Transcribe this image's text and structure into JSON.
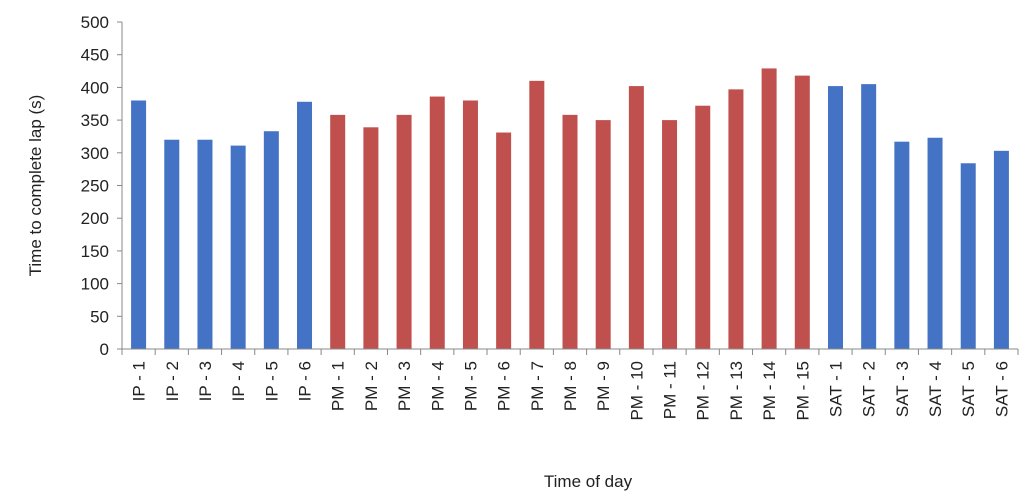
{
  "chart_data": {
    "type": "bar",
    "title": "",
    "xlabel": "Time of day",
    "ylabel": "Time to complete lap (s)",
    "ylim": [
      0,
      500
    ],
    "yticks": [
      0,
      50,
      100,
      150,
      200,
      250,
      300,
      350,
      400,
      450,
      500
    ],
    "grid": false,
    "legend": "none",
    "colors": {
      "blue": "#4472c4",
      "red": "#c0504d",
      "axis": "#888888"
    },
    "categories": [
      "IP - 1",
      "IP - 2",
      "IP - 3",
      "IP - 4",
      "IP - 5",
      "IP - 6",
      "PM - 1",
      "PM - 2",
      "PM - 3",
      "PM - 4",
      "PM - 5",
      "PM - 6",
      "PM - 7",
      "PM - 8",
      "PM - 9",
      "PM - 10",
      "PM - 11",
      "PM - 12",
      "PM - 13",
      "PM - 14",
      "PM - 15",
      "SAT - 1",
      "SAT - 2",
      "SAT - 3",
      "SAT - 4",
      "SAT - 5",
      "SAT - 6"
    ],
    "values": [
      380,
      320,
      320,
      311,
      333,
      378,
      358,
      339,
      358,
      386,
      380,
      331,
      410,
      358,
      350,
      402,
      350,
      372,
      397,
      429,
      418,
      402,
      405,
      317,
      323,
      284,
      303
    ],
    "bar_colors": [
      "blue",
      "blue",
      "blue",
      "blue",
      "blue",
      "blue",
      "red",
      "red",
      "red",
      "red",
      "red",
      "red",
      "red",
      "red",
      "red",
      "red",
      "red",
      "red",
      "red",
      "red",
      "red",
      "blue",
      "blue",
      "blue",
      "blue",
      "blue",
      "blue"
    ]
  }
}
